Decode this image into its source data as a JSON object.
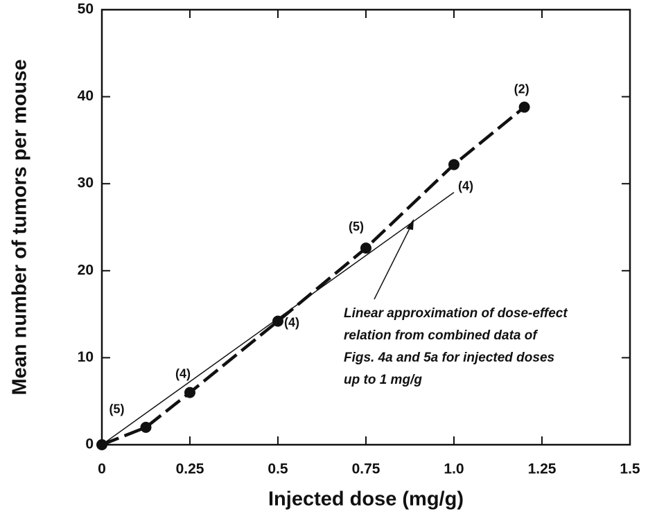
{
  "chart_data": {
    "type": "line",
    "xlabel": "Injected dose (mg/g)",
    "ylabel": "Mean number of tumors per mouse",
    "x": [
      0,
      0.125,
      0.25,
      0.5,
      0.75,
      1.0,
      1.2
    ],
    "series": [
      {
        "values": [
          0,
          2,
          6,
          14.2,
          22.6,
          32.2,
          38.8
        ],
        "color": "#111111",
        "point_labels": [
          null,
          "(5)",
          "(4)",
          "(4)",
          "(5)",
          "(4)",
          "(2)"
        ]
      }
    ],
    "linear_fit": {
      "x": [
        0,
        1.0
      ],
      "values": [
        0,
        29
      ]
    },
    "annotation": [
      "Linear approximation of dose-effect",
      "relation from combined data of",
      "Figs. 4a and 5a for injected doses",
      "up to 1 mg/g"
    ],
    "xlim": [
      0,
      1.5
    ],
    "ylim": [
      0,
      50
    ],
    "xticks": [
      0,
      0.25,
      0.5,
      0.75,
      {
        "value": 1,
        "label": "1.0"
      },
      1.25,
      1.5
    ],
    "yticks": [
      0,
      10,
      20,
      30,
      40,
      50
    ]
  }
}
